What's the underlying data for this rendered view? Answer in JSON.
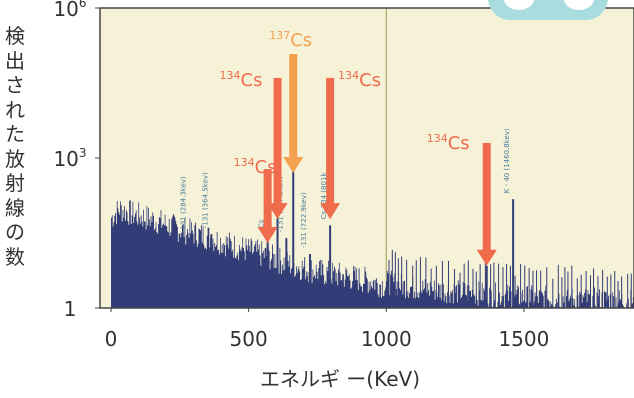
{
  "chart_data": {
    "type": "bar",
    "xlabel": "エネルギ ー(KeV)",
    "ylabel": "検出された放射線の数",
    "xlim": [
      -40,
      1900
    ],
    "x_ticks": [
      {
        "value": 0,
        "label": "0"
      },
      {
        "value": 500,
        "label": "500"
      },
      {
        "value": 1000,
        "label": "1000"
      },
      {
        "value": 1500,
        "label": "1500"
      }
    ],
    "y_scale": "log",
    "ylim": [
      1,
      1000000
    ],
    "y_ticks": [
      {
        "value": 1,
        "label": "1",
        "sup": ""
      },
      {
        "value": 1000,
        "label": "10",
        "sup": "3"
      },
      {
        "value": 1000000,
        "label": "10",
        "sup": "6"
      }
    ],
    "reference_line_x": 1000,
    "colors": {
      "plot_bg": "#f6f2d8",
      "spectrum": "#323d77",
      "peak_label": "#4a7e9c",
      "cs134": "#ef6b4c",
      "cs137": "#f3a04f",
      "ref_line": "#a8a86a",
      "axis": "#444444"
    },
    "background_spectrum": [
      {
        "x": 0,
        "y": 60
      },
      {
        "x": 30,
        "y": 90
      },
      {
        "x": 80,
        "y": 70
      },
      {
        "x": 150,
        "y": 55
      },
      {
        "x": 250,
        "y": 35
      },
      {
        "x": 350,
        "y": 25
      },
      {
        "x": 450,
        "y": 16
      },
      {
        "x": 550,
        "y": 11
      },
      {
        "x": 650,
        "y": 7
      },
      {
        "x": 750,
        "y": 5
      },
      {
        "x": 850,
        "y": 4
      },
      {
        "x": 950,
        "y": 3.2
      },
      {
        "x": 1000,
        "y": 2.6
      },
      {
        "x": 1100,
        "y": 2.0
      },
      {
        "x": 1300,
        "y": 1.6
      },
      {
        "x": 1500,
        "y": 1.3
      },
      {
        "x": 1900,
        "y": 1.1
      }
    ],
    "peaks": [
      {
        "x": 284.3,
        "y": 25,
        "label": "-131 (284.3kev)"
      },
      {
        "x": 364.5,
        "y": 30,
        "label": "-131 (364.5kev)"
      },
      {
        "x": 569,
        "y": 30,
        "label": "Cs"
      },
      {
        "x": 605,
        "y": 90,
        "label": ""
      },
      {
        "x": 637.0,
        "y": 25,
        "label": "-131 (637.0kev)"
      },
      {
        "x": 662,
        "y": 700,
        "label": ""
      },
      {
        "x": 722.9,
        "y": 12,
        "label": "-131 (722.9kev)"
      },
      {
        "x": 796,
        "y": 45,
        "label": "Cs-134 (801k"
      },
      {
        "x": 1365,
        "y": 7,
        "label": ""
      },
      {
        "x": 1460.8,
        "y": 150,
        "label": "K - 40 (1460.8kev)"
      }
    ],
    "annotations": [
      {
        "label": "Cs",
        "mass": "134",
        "color": "cs134",
        "x": 569,
        "y_tip": 20,
        "y_tail": 600
      },
      {
        "label": "Cs",
        "mass": "134",
        "color": "cs134",
        "x": 605,
        "y_tip": 60,
        "y_tail": 40000
      },
      {
        "label": "Cs",
        "mass": "137",
        "color": "cs137",
        "x": 662,
        "y_tip": 500,
        "y_tail": 120000
      },
      {
        "label": "Cs",
        "mass": "134",
        "color": "cs134",
        "x": 796,
        "y_tip": 60,
        "y_tail": 40000
      },
      {
        "label": "Cs",
        "mass": "134",
        "color": "cs134",
        "x": 1365,
        "y_tip": 7,
        "y_tail": 2000
      }
    ]
  }
}
